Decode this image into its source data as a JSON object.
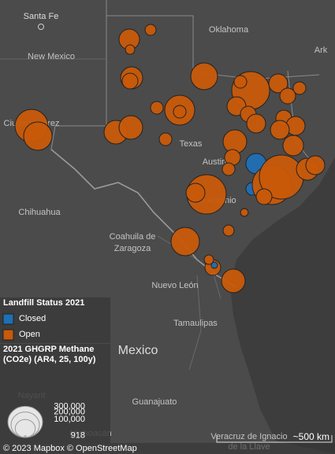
{
  "map_labels": [
    "Santa Fe",
    "Oklahoma",
    "New Mexico",
    "Ark",
    "Texas",
    "Ciudad Juárez",
    "San Antonio",
    "Austin",
    "Chihuahua",
    "Coahuila de",
    "Zaragoza",
    "Nuevo León",
    "Tamaulipas",
    "Mexico",
    "Guanajuato",
    "Nayarit",
    "Michoacán",
    "Veracruz de Ignacio",
    "de la Llave"
  ],
  "attribution": "© 2023 Mapbox © OpenStreetMap",
  "scale_label": "~500 km",
  "legend": {
    "status_title": "Landfill Status 2021",
    "status_items": [
      {
        "label": "Closed",
        "color": "#1f6fb4"
      },
      {
        "label": "Open",
        "color": "#c85a0a"
      }
    ],
    "size_title": [
      "2021 GHGRP Methane",
      "(CO2e) (AR4, 25, 100y)"
    ],
    "size_ticks": [
      918,
      {
        "value": 100000,
        "label": "100,000"
      },
      {
        "value": 200000,
        "label": "200,000"
      },
      {
        "value": 300000,
        "label": "300,000"
      }
    ]
  },
  "landfills": [
    {
      "status": 1,
      "value": 105000
    },
    {
      "status": 1,
      "value": 30000
    },
    {
      "status": 1,
      "value": 22000
    },
    {
      "status": 1,
      "value": 179000
    },
    {
      "status": 1,
      "value": 121000
    },
    {
      "status": 1,
      "value": 62000
    },
    {
      "status": 1,
      "value": 224000
    },
    {
      "status": 1,
      "value": 40000
    },
    {
      "status": 1,
      "value": 40000
    },
    {
      "status": 1,
      "value": 40000
    },
    {
      "status": 1,
      "value": 139000
    },
    {
      "status": 1,
      "value": 139000
    },
    {
      "status": 1,
      "value": 273000
    },
    {
      "status": 1,
      "value": 201000
    },
    {
      "status": 1,
      "value": 357000
    },
    {
      "status": 1,
      "value": 40000
    },
    {
      "status": 1,
      "value": 89000
    },
    {
      "status": 1,
      "value": 40000
    },
    {
      "status": 1,
      "value": 62000
    },
    {
      "status": 1,
      "value": 89000
    },
    {
      "status": 1,
      "value": 62000
    },
    {
      "status": 1,
      "value": 89000
    },
    {
      "status": 1,
      "value": 62000
    },
    {
      "status": 1,
      "value": 89000
    },
    {
      "status": 1,
      "value": 89000
    },
    {
      "status": 1,
      "value": 105000
    },
    {
      "status": 1,
      "value": 139000
    },
    {
      "status": 1,
      "value": 62000
    },
    {
      "status": 1,
      "value": 40000
    },
    {
      "status": 0,
      "value": 105000
    },
    {
      "status": 0,
      "value": 40000
    },
    {
      "status": 1,
      "value": 387000
    },
    {
      "status": 1,
      "value": 89000
    },
    {
      "status": 1,
      "value": 387000
    },
    {
      "status": 1,
      "value": 486000
    },
    {
      "status": 1,
      "value": 121000
    },
    {
      "status": 1,
      "value": 62000
    },
    {
      "status": 1,
      "value": 201000
    },
    {
      "status": 1,
      "value": 30000
    },
    {
      "status": 1,
      "value": 62000
    },
    {
      "status": 0,
      "value": 10000
    },
    {
      "status": 1,
      "value": 139000
    },
    {
      "status": 1,
      "value": 22000
    },
    {
      "status": 1,
      "value": 15000
    },
    {
      "status": 1,
      "value": 89000
    }
  ]
}
